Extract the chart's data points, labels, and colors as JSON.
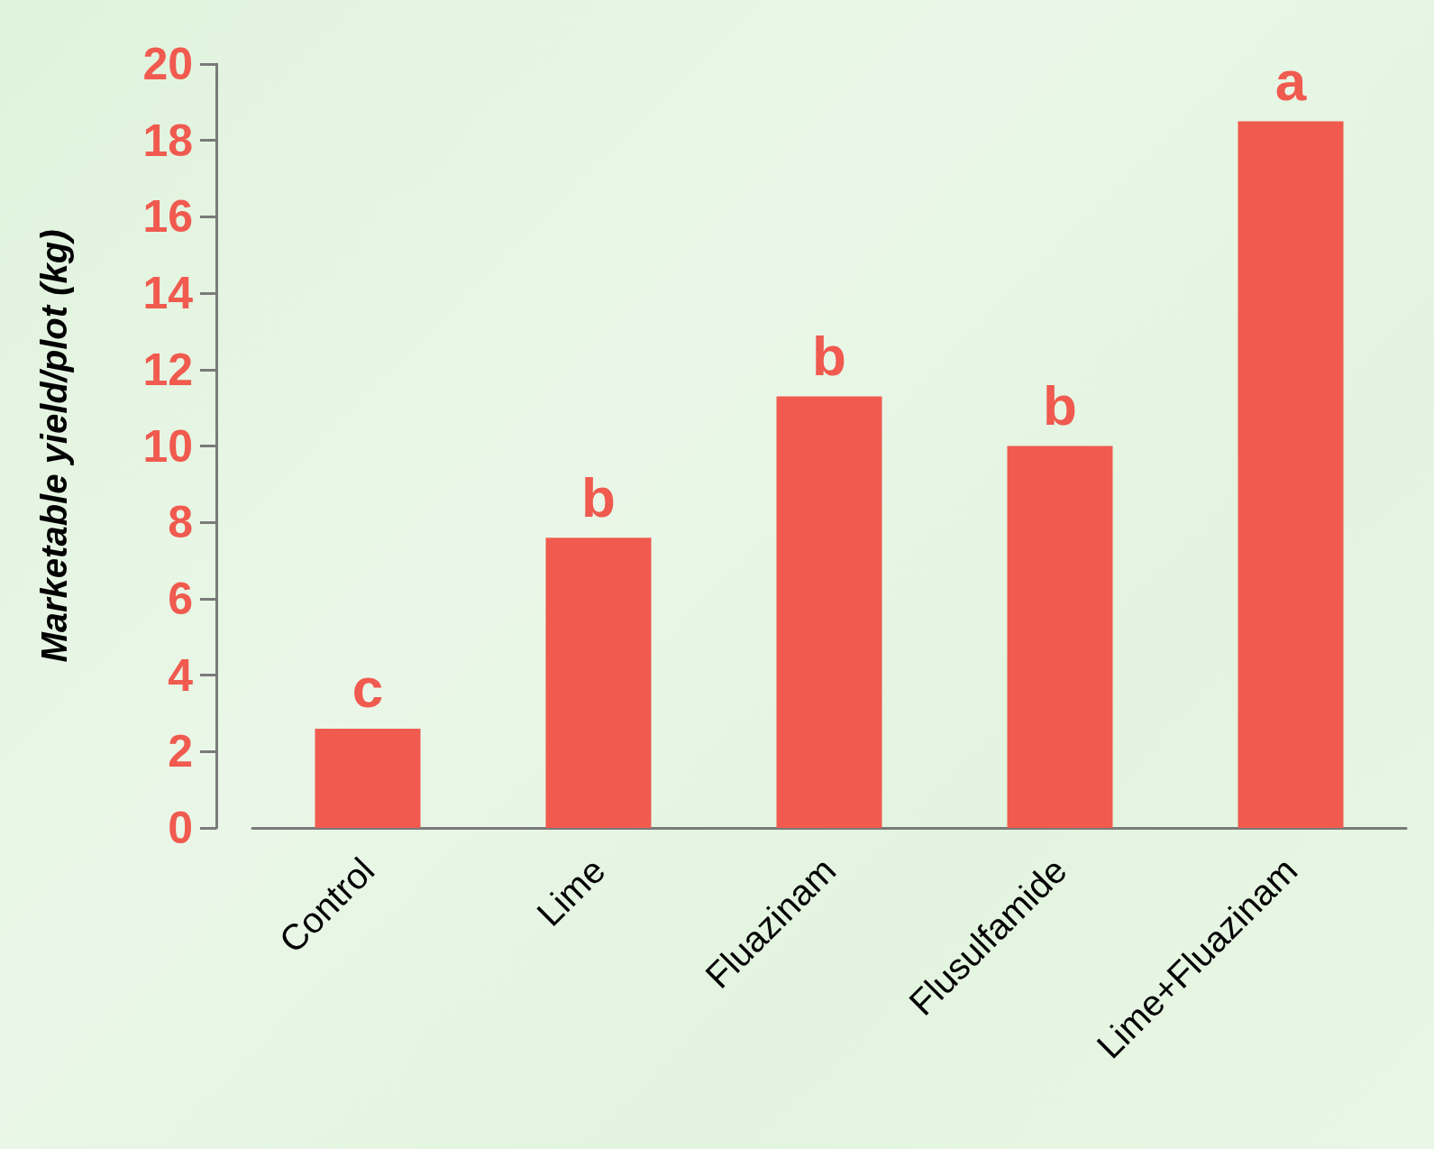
{
  "chart_data": {
    "type": "bar",
    "ylabel": "Marketable yield/plot (kg)",
    "categories": [
      "Control",
      "Lime",
      "Fluazinam",
      "Flusulfamide",
      "Lime+Fluazinam"
    ],
    "values": [
      2.6,
      7.6,
      11.3,
      10.0,
      18.5
    ],
    "color": "#f05a4f",
    "ylim": [
      0,
      20
    ],
    "yticks": [
      0,
      2,
      4,
      6,
      8,
      10,
      12,
      14,
      16,
      18,
      20
    ],
    "grid": false,
    "annotations": [
      {
        "text": "c",
        "x": "Control",
        "y": 2.6
      },
      {
        "text": "b",
        "x": "Lime",
        "y": 7.6
      },
      {
        "text": "b",
        "x": "Fluazinam",
        "y": 11.3
      },
      {
        "text": "b",
        "x": "Flusulfamide",
        "y": 10.0
      },
      {
        "text": "a",
        "x": "Lime+Fluazinam",
        "y": 18.5
      }
    ]
  }
}
